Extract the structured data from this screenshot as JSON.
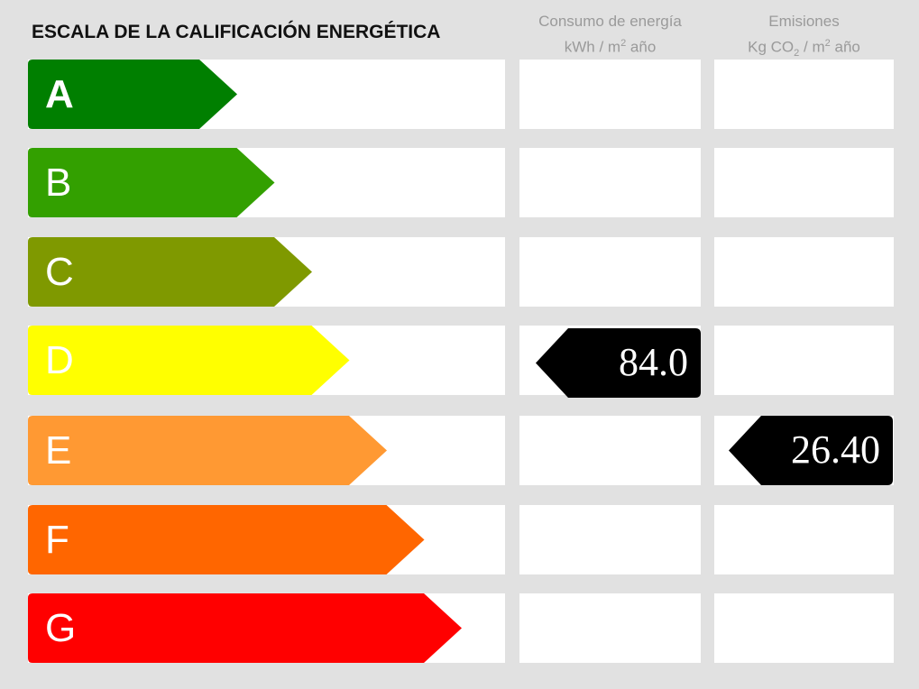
{
  "title": "ESCALA DE LA CALIFICACIÓN ENERGÉTICA",
  "columns": {
    "energy": {
      "line1": "Consumo de energía",
      "unit_pre": "kWh / m",
      "unit_sup": "2",
      "unit_post": " año"
    },
    "emissions": {
      "line1": "Emisiones",
      "unit_pre": "Kg CO",
      "unit_sub": "2",
      "unit_mid": " / m",
      "unit_sup": "2",
      "unit_post": " año"
    }
  },
  "ratings": [
    {
      "letter": "A",
      "color": "#007f00"
    },
    {
      "letter": "B",
      "color": "#33a000"
    },
    {
      "letter": "C",
      "color": "#7f9900"
    },
    {
      "letter": "D",
      "color": "#ffff00"
    },
    {
      "letter": "E",
      "color": "#ff9933"
    },
    {
      "letter": "F",
      "color": "#ff6600"
    },
    {
      "letter": "G",
      "color": "#ff0000"
    }
  ],
  "energy_rating": {
    "letter": "D",
    "value": "84.0"
  },
  "emissions_rating": {
    "letter": "E",
    "value": "26.40"
  }
}
